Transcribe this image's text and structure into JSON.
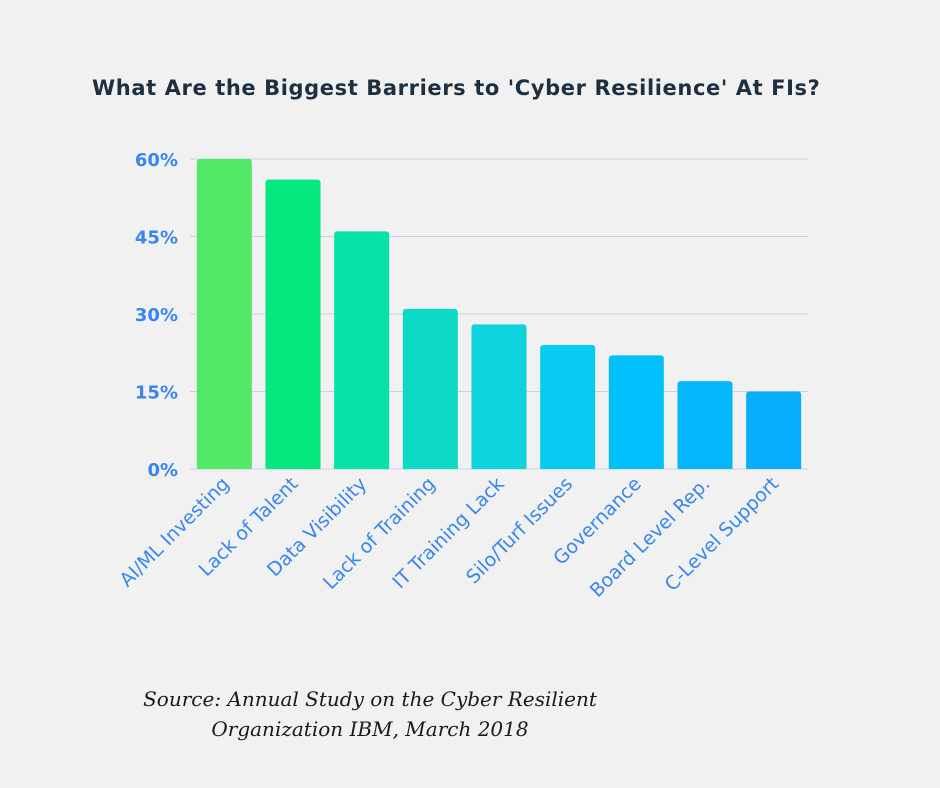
{
  "chart_data": {
    "type": "bar",
    "title": "What Are the Biggest Barriers to 'Cyber Resilience' At FIs?",
    "categories": [
      "AI/ML Investing",
      "Lack of Talent",
      "Data Visibility",
      "Lack of Training",
      "IT Training Lack",
      "Silo/Turf Issues",
      "Governance",
      "Board Level Rep.",
      "C-Level Support"
    ],
    "values": [
      60,
      56,
      46,
      31,
      28,
      24,
      22,
      17,
      15
    ],
    "ylim": [
      0,
      60
    ],
    "yticks": [
      0,
      15,
      30,
      45,
      60
    ],
    "ytick_labels": [
      "0%",
      "15%",
      "30%",
      "45%",
      "60%"
    ],
    "xlabel": "",
    "ylabel": "",
    "grid": true,
    "colors": [
      "#52e969",
      "#05e77f",
      "#06e2a8",
      "#0ddac6",
      "#0cd3dc",
      "#08cbf2",
      "#01c0fb",
      "#04b7fb",
      "#07acfb"
    ],
    "tick_color": "#3a86f0",
    "grid_color": "#c2d3e4"
  },
  "source": {
    "line1": "Source: Annual Study on the Cyber Resilient",
    "line2": "Organization IBM,  March  2018"
  }
}
